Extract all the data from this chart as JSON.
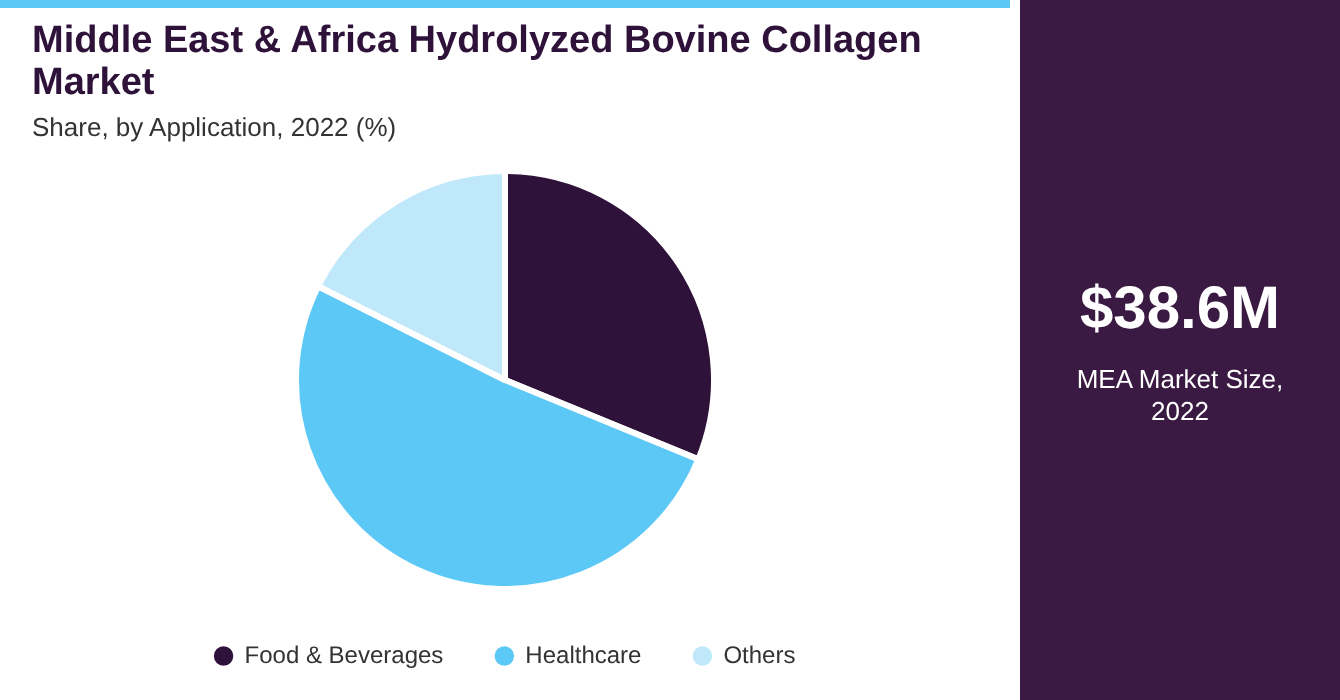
{
  "chart_data": {
    "type": "pie",
    "title": "Middle East & Africa Hydrolyzed Bovine Collagen Market",
    "subtitle": "Share, by Application, 2022 (%)",
    "categories": [
      "Food & Beverages",
      "Healthcare",
      "Others"
    ],
    "values": [
      31.2,
      51.2,
      17.6
    ],
    "colors": [
      "#2e1239",
      "#5cc8f5",
      "#bfe9fa"
    ],
    "legend": "bottom",
    "annotations": [
      "$38.6M",
      "MEA Market Size, 2022"
    ]
  }
}
